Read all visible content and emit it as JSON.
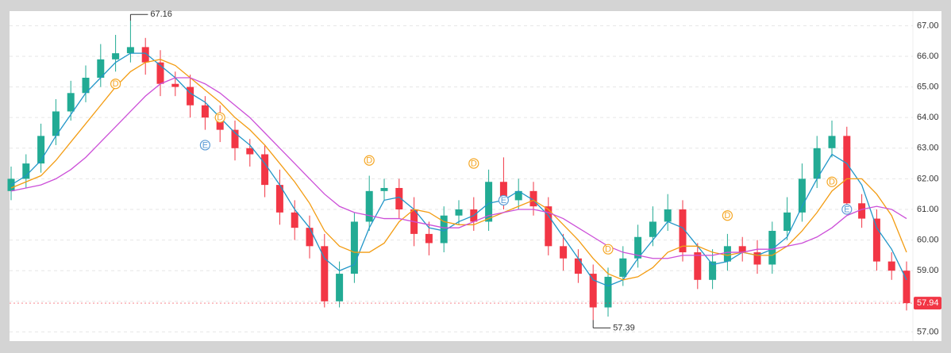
{
  "chart_data": {
    "type": "candlestick",
    "open": [
      61.6,
      62.0,
      62.5,
      63.4,
      64.2,
      64.8,
      65.3,
      65.9,
      66.1,
      66.3,
      65.8,
      65.1,
      65.0,
      64.4,
      64.0,
      63.6,
      63.0,
      62.8,
      61.8,
      60.9,
      60.4,
      59.8,
      58.0,
      58.9,
      60.6,
      61.6,
      61.7,
      61.0,
      60.2,
      59.9,
      60.8,
      61.0,
      60.6,
      61.9,
      61.3,
      61.6,
      61.1,
      59.8,
      59.4,
      58.9,
      57.8,
      58.8,
      59.4,
      60.1,
      60.6,
      61.0,
      59.6,
      58.7,
      59.3,
      59.8,
      59.6,
      59.2,
      60.3,
      60.9,
      62.0,
      63.0,
      63.4,
      61.2,
      60.7,
      59.3,
      59.0
    ],
    "high": [
      62.4,
      62.8,
      63.8,
      64.6,
      65.2,
      65.7,
      66.4,
      66.7,
      67.16,
      66.6,
      66.2,
      65.5,
      65.4,
      64.7,
      64.4,
      63.9,
      63.3,
      63.1,
      62.3,
      61.3,
      60.8,
      60.2,
      59.3,
      60.9,
      62.1,
      62.0,
      62.0,
      61.4,
      60.6,
      61.1,
      61.3,
      61.4,
      62.3,
      62.7,
      62.0,
      61.9,
      61.4,
      60.2,
      59.7,
      59.2,
      59.1,
      59.8,
      60.5,
      61.1,
      61.5,
      61.3,
      59.9,
      59.7,
      60.2,
      60.1,
      60.0,
      60.6,
      61.4,
      62.5,
      63.4,
      63.9,
      63.7,
      61.5,
      61.0,
      59.6,
      59.3
    ],
    "low": [
      61.3,
      61.7,
      62.2,
      63.1,
      63.9,
      64.5,
      65.0,
      65.5,
      65.8,
      65.4,
      64.7,
      64.7,
      64.0,
      63.6,
      63.2,
      62.6,
      62.4,
      61.4,
      60.5,
      60.0,
      59.4,
      57.8,
      57.8,
      58.6,
      60.3,
      61.3,
      60.7,
      59.8,
      59.5,
      59.6,
      60.5,
      60.3,
      60.3,
      61.0,
      61.0,
      60.8,
      59.5,
      59.0,
      58.6,
      57.39,
      57.5,
      58.5,
      59.1,
      59.8,
      60.3,
      59.3,
      58.4,
      58.4,
      59.0,
      59.3,
      58.9,
      58.9,
      60.0,
      60.6,
      61.7,
      62.7,
      60.9,
      60.4,
      59.0,
      58.7,
      57.7
    ],
    "close": [
      62.0,
      62.5,
      63.4,
      64.2,
      64.8,
      65.3,
      65.9,
      66.1,
      66.3,
      65.8,
      65.1,
      65.0,
      64.4,
      64.0,
      63.6,
      63.0,
      62.8,
      61.8,
      60.9,
      60.4,
      59.8,
      58.0,
      58.9,
      60.6,
      61.6,
      61.7,
      61.0,
      60.2,
      59.9,
      60.8,
      61.0,
      60.6,
      61.9,
      61.3,
      61.6,
      61.1,
      59.8,
      59.4,
      58.9,
      57.8,
      58.8,
      59.4,
      60.1,
      60.6,
      61.0,
      59.6,
      58.7,
      59.3,
      59.8,
      59.6,
      59.2,
      60.3,
      60.9,
      62.0,
      63.0,
      63.4,
      61.2,
      60.7,
      59.3,
      59.0,
      57.94
    ],
    "up_color": "#22ab94",
    "down_color": "#f23645",
    "lines": [
      {
        "color": "#2196c8",
        "values": [
          61.8,
          62.1,
          62.6,
          63.4,
          64.1,
          64.8,
          65.3,
          65.8,
          66.1,
          66.1,
          65.7,
          65.3,
          64.8,
          64.5,
          64.0,
          63.5,
          63.1,
          62.5,
          61.8,
          61.0,
          60.4,
          59.4,
          59.0,
          59.2,
          60.4,
          61.3,
          61.4,
          61.0,
          60.4,
          60.3,
          60.6,
          60.8,
          61.2,
          61.3,
          61.6,
          61.3,
          60.8,
          60.1,
          59.4,
          58.7,
          58.5,
          58.7,
          59.4,
          60.0,
          60.6,
          60.4,
          59.8,
          59.2,
          59.3,
          59.6,
          59.5,
          59.7,
          60.1,
          61.1,
          62.0,
          62.8,
          62.5,
          61.8,
          60.4,
          59.7,
          58.7
        ]
      },
      {
        "color": "#f39c12",
        "values": [
          61.7,
          61.9,
          62.1,
          62.6,
          63.2,
          63.8,
          64.4,
          65.0,
          65.5,
          65.8,
          65.9,
          65.7,
          65.3,
          64.9,
          64.5,
          64.0,
          63.6,
          63.1,
          62.5,
          61.9,
          61.2,
          60.3,
          59.8,
          59.6,
          59.6,
          59.9,
          60.6,
          61.0,
          60.9,
          60.6,
          60.5,
          60.5,
          60.7,
          60.9,
          61.1,
          61.3,
          61.0,
          60.5,
          60.0,
          59.4,
          58.9,
          58.7,
          58.8,
          59.1,
          59.6,
          59.8,
          59.8,
          59.6,
          59.5,
          59.6,
          59.5,
          59.5,
          59.8,
          60.3,
          60.9,
          61.6,
          62.0,
          62.0,
          61.5,
          60.8,
          59.6
        ]
      },
      {
        "color": "#cc4fd8",
        "values": [
          61.6,
          61.7,
          61.8,
          62.0,
          62.3,
          62.7,
          63.2,
          63.7,
          64.2,
          64.7,
          65.1,
          65.3,
          65.3,
          65.1,
          64.8,
          64.4,
          64.0,
          63.5,
          63.0,
          62.5,
          62.0,
          61.5,
          61.1,
          60.9,
          60.8,
          60.7,
          60.7,
          60.6,
          60.5,
          60.4,
          60.4,
          60.6,
          60.8,
          60.9,
          61.0,
          61.0,
          60.9,
          60.7,
          60.4,
          60.1,
          59.8,
          59.6,
          59.5,
          59.4,
          59.4,
          59.5,
          59.5,
          59.5,
          59.6,
          59.6,
          59.7,
          59.7,
          59.8,
          59.9,
          60.1,
          60.4,
          60.8,
          61.0,
          61.1,
          61.0,
          60.7
        ]
      }
    ],
    "events": [
      {
        "label": "D",
        "index": 7,
        "price": 65.1
      },
      {
        "label": "E",
        "index": 13,
        "price": 63.1
      },
      {
        "label": "D",
        "index": 14,
        "price": 64.0
      },
      {
        "label": "D",
        "index": 24,
        "price": 62.6
      },
      {
        "label": "D",
        "index": 31,
        "price": 62.5
      },
      {
        "label": "E",
        "index": 33,
        "price": 61.3
      },
      {
        "label": "D",
        "index": 40,
        "price": 59.7
      },
      {
        "label": "D",
        "index": 48,
        "price": 60.8
      },
      {
        "label": "D",
        "index": 55,
        "price": 61.9
      },
      {
        "label": "E",
        "index": 56,
        "price": 61.0
      }
    ],
    "ylim": [
      56.7,
      67.45
    ],
    "yticks": [
      {
        "value": 57,
        "label": "57.00"
      },
      {
        "value": 58,
        "label": "58.00"
      },
      {
        "value": 59,
        "label": "59.00"
      },
      {
        "value": 60,
        "label": "60.00"
      },
      {
        "value": 61,
        "label": "61.00"
      },
      {
        "value": 62,
        "label": "62.00"
      },
      {
        "value": 63,
        "label": "63.00"
      },
      {
        "value": 64,
        "label": "64.00"
      },
      {
        "value": 65,
        "label": "65.00"
      },
      {
        "value": 66,
        "label": "66.00"
      },
      {
        "value": 67,
        "label": "67.00"
      }
    ],
    "grid": true
  }
}
